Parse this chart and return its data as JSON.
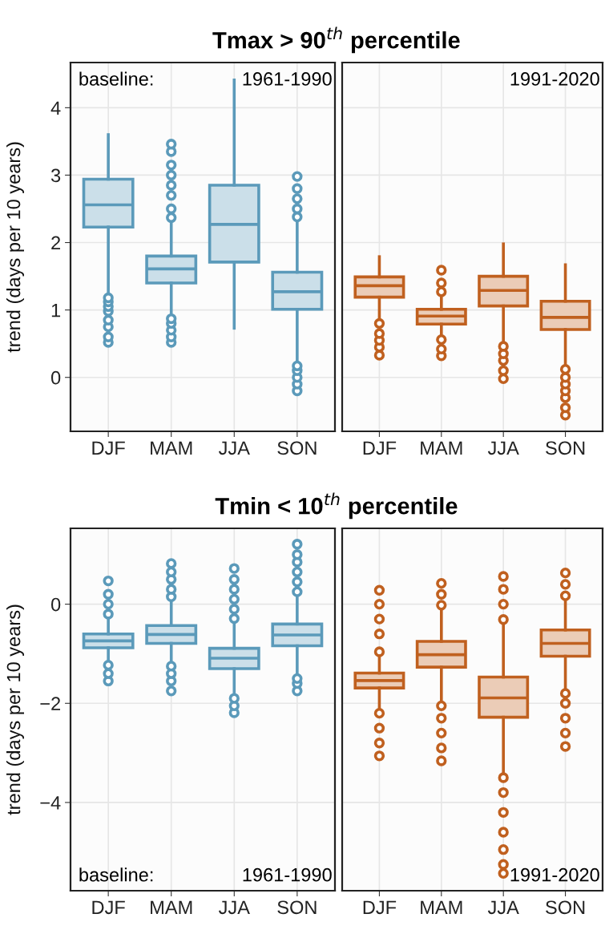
{
  "chart_data": [
    {
      "type": "box",
      "title": "Tmax > 90$^{th}$ percentile",
      "ylabel": "trend (days per 10 years)",
      "categories": [
        "DJF",
        "MAM",
        "JJA",
        "SON"
      ],
      "ylim": [
        -0.8,
        4.67
      ],
      "yticks": [
        0,
        1,
        2,
        3,
        4
      ],
      "grid": true,
      "annotations": [
        "baseline:",
        "1961-1990"
      ],
      "series": [
        {
          "color": "#5b9aba",
          "boxes": [
            {
              "low": 1.2,
              "q1": 2.23,
              "median": 2.56,
              "q3": 2.94,
              "high": 3.6,
              "outliers": [
                0.52,
                0.6,
                0.75,
                0.85,
                0.98,
                1.05,
                1.12,
                1.18
              ]
            },
            {
              "low": 0.9,
              "q1": 1.4,
              "median": 1.61,
              "q3": 1.8,
              "high": 2.32,
              "outliers": [
                0.52,
                0.6,
                0.7,
                0.8,
                0.87,
                2.37,
                2.5,
                2.7,
                2.85,
                3.0,
                3.15,
                3.35,
                3.46
              ]
            },
            {
              "low": 0.73,
              "q1": 1.71,
              "median": 2.27,
              "q3": 2.85,
              "high": 4.41
            },
            {
              "low": 0.22,
              "q1": 1.01,
              "median": 1.27,
              "q3": 1.56,
              "high": 2.35,
              "outliers": [
                -0.2,
                -0.1,
                0.0,
                0.1,
                0.17,
                2.38,
                2.5,
                2.65,
                2.8,
                2.98
              ]
            }
          ]
        }
      ]
    },
    {
      "type": "box",
      "categories": [
        "DJF",
        "MAM",
        "JJA",
        "SON"
      ],
      "ylim": [
        -0.8,
        4.67
      ],
      "yticks": [
        0,
        1,
        2,
        3,
        4
      ],
      "tick_labels": "x",
      "grid": true,
      "annotations": [
        "1991-2020"
      ],
      "series": [
        {
          "color": "#c0601f",
          "boxes": [
            {
              "low": 0.83,
              "q1": 1.19,
              "median": 1.36,
              "q3": 1.49,
              "high": 1.79,
              "outliers": [
                0.33,
                0.45,
                0.55,
                0.65,
                0.8
              ]
            },
            {
              "low": 0.6,
              "q1": 0.79,
              "median": 0.91,
              "q3": 1.01,
              "high": 1.22,
              "outliers": [
                0.32,
                0.42,
                0.56,
                1.27,
                1.4,
                1.59
              ]
            },
            {
              "low": 0.5,
              "q1": 1.06,
              "median": 1.29,
              "q3": 1.5,
              "high": 1.98,
              "outliers": [
                -0.02,
                0.1,
                0.25,
                0.35,
                0.46
              ]
            },
            {
              "low": 0.15,
              "q1": 0.71,
              "median": 0.89,
              "q3": 1.13,
              "high": 1.67,
              "outliers": [
                -0.56,
                -0.45,
                -0.3,
                -0.2,
                -0.1,
                0.0,
                0.12
              ]
            }
          ]
        }
      ]
    },
    {
      "type": "box",
      "title": "Tmin < 10$^{th}$ percentile",
      "ylabel": "trend (days per 10 years)",
      "categories": [
        "DJF",
        "MAM",
        "JJA",
        "SON"
      ],
      "ylim": [
        -5.78,
        1.53
      ],
      "yticks": [
        {
          "value": -4,
          "label": "−4"
        },
        {
          "value": -2,
          "label": "−2"
        },
        0
      ],
      "grid": true,
      "annotations": [
        "baseline:",
        "1961-1990"
      ],
      "series": [
        {
          "color": "#5b9aba",
          "boxes": [
            {
              "low": -1.2,
              "q1": -0.88,
              "median": -0.74,
              "q3": -0.6,
              "high": -0.25,
              "outliers": [
                -1.55,
                -1.4,
                -1.23,
                -0.2,
                0.0,
                0.2,
                0.47
              ]
            },
            {
              "low": -1.2,
              "q1": -0.79,
              "median": -0.61,
              "q3": -0.43,
              "high": 0.1,
              "outliers": [
                -1.75,
                -1.55,
                -1.4,
                -1.25,
                0.15,
                0.3,
                0.5,
                0.65,
                0.82
              ]
            },
            {
              "low": -1.85,
              "q1": -1.3,
              "median": -1.09,
              "q3": -0.89,
              "high": -0.35,
              "outliers": [
                -2.19,
                -2.05,
                -1.9,
                -0.29,
                -0.1,
                0.1,
                0.3,
                0.5,
                0.72
              ]
            },
            {
              "low": -1.5,
              "q1": -0.84,
              "median": -0.62,
              "q3": -0.4,
              "high": 0.2,
              "outliers": [
                -1.75,
                -1.6,
                -1.5,
                0.25,
                0.45,
                0.65,
                0.85,
                1.0,
                1.21
              ]
            }
          ]
        }
      ]
    },
    {
      "type": "box",
      "categories": [
        "DJF",
        "MAM",
        "JJA",
        "SON"
      ],
      "ylim": [
        -5.78,
        1.53
      ],
      "yticks": [
        -4,
        -2,
        0
      ],
      "tick_labels": "x",
      "grid": true,
      "annotations": [
        "1991-2020"
      ],
      "series": [
        {
          "color": "#c0601f",
          "boxes": [
            {
              "low": -2.09,
              "q1": -1.69,
              "median": -1.54,
              "q3": -1.39,
              "high": -1.0,
              "outliers": [
                -3.06,
                -2.8,
                -2.5,
                -2.2,
                -0.96,
                -0.6,
                -0.3,
                0.0,
                0.28
              ]
            },
            {
              "low": -1.98,
              "q1": -1.27,
              "median": -1.02,
              "q3": -0.75,
              "high": -0.05,
              "outliers": [
                -3.16,
                -2.9,
                -2.6,
                -2.3,
                -2.05,
                -0.02,
                0.2,
                0.42
              ]
            },
            {
              "low": -3.44,
              "q1": -2.28,
              "median": -1.89,
              "q3": -1.47,
              "high": -0.35,
              "outliers": [
                -5.43,
                -5.25,
                -4.95,
                -4.6,
                -4.2,
                -3.8,
                -3.5,
                -0.31,
                0.0,
                0.3,
                0.56
              ]
            },
            {
              "low": -1.77,
              "q1": -1.05,
              "median": -0.79,
              "q3": -0.52,
              "high": 0.12,
              "outliers": [
                -2.87,
                -2.6,
                -2.3,
                -2.0,
                -1.8,
                0.17,
                0.4,
                0.63
              ]
            }
          ]
        }
      ]
    }
  ]
}
